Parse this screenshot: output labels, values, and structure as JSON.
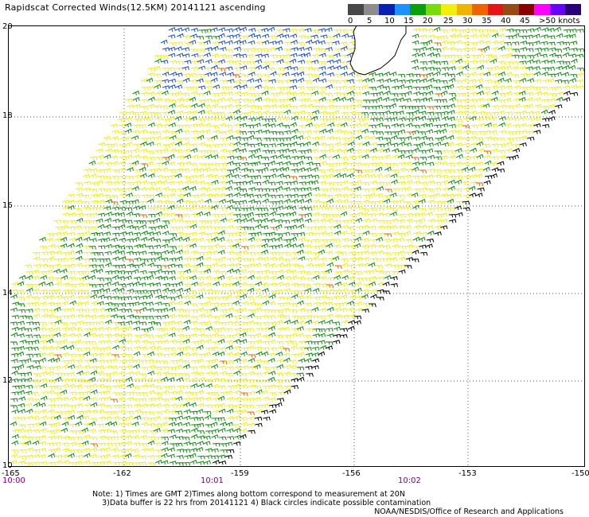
{
  "title": "Rapidscat Corrected Winds(12.5KM) 20141121 ascending",
  "legend": {
    "colors": [
      "#474747",
      "#8c8c8c",
      "#0a20b4",
      "#1e90ff",
      "#0aa00a",
      "#78dc0a",
      "#f0f00a",
      "#f0b400",
      "#f06400",
      "#e61414",
      "#964b14",
      "#8b0000",
      "#ff00ff",
      "#6a00ff",
      "#2a007a"
    ],
    "labels": [
      "0",
      "5",
      "10",
      "15",
      "20",
      "25",
      "30",
      "35",
      "40",
      "45",
      ">50 knots"
    ]
  },
  "map": {
    "lat_labels": [
      "20",
      "18",
      "16",
      "14",
      "12",
      "10"
    ],
    "lon_labels": [
      "-165",
      "-162",
      "-159",
      "-156",
      "-153",
      "-150"
    ],
    "time_labels": [
      "10:00",
      "10:01",
      "10:02"
    ],
    "barb_colors": {
      "dominant": "#f0f000",
      "secondary": "#0a8f0a",
      "fast": "#1450c8",
      "strong": "#e06400",
      "land_edge": "#000000",
      "land": "#ffffff"
    },
    "grid": true
  },
  "notes": {
    "line1": "Note: 1) Times are GMT 2)Times along bottom correspond to measurement at 20N",
    "line2": "3)Data buffer is 22 hrs from 20141121 4) Black circles indicate possible contamination",
    "credit": "NOAA/NESDIS/Office of Research and Applications"
  }
}
